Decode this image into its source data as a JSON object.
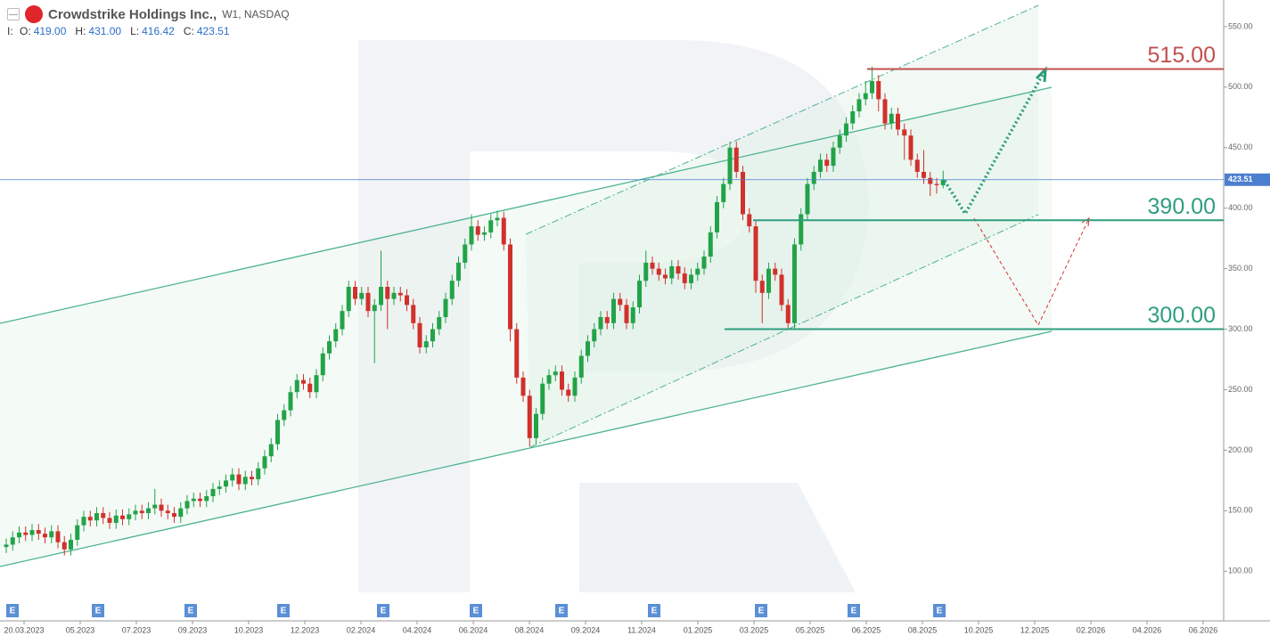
{
  "chart_data": {
    "type": "candlestick",
    "title": "Crowdstrike Holdings Inc.,",
    "subtitle": "W1, NASDAQ",
    "header": {
      "prefix": "I:",
      "fields": [
        {
          "label": "O:",
          "value": "419.00"
        },
        {
          "label": "H:",
          "value": "431.00"
        },
        {
          "label": "L:",
          "value": "416.42"
        },
        {
          "label": "C:",
          "value": "423.51"
        }
      ]
    },
    "up_color": "#22a348",
    "down_color": "#d0312d",
    "open": [
      120,
      122,
      128,
      132,
      130,
      134,
      131,
      128,
      133,
      124,
      118,
      126,
      138,
      145,
      142,
      148,
      144,
      140,
      146,
      143,
      147,
      150,
      148,
      152,
      155,
      150,
      148,
      145,
      152,
      158,
      160,
      158,
      162,
      168,
      170,
      175,
      180,
      172,
      178,
      176,
      185,
      195,
      205,
      225,
      233,
      248,
      258,
      255,
      248,
      262,
      280,
      290,
      300,
      315,
      335,
      325,
      330,
      315,
      320,
      335,
      325,
      330,
      328,
      320,
      305,
      285,
      290,
      300,
      310,
      325,
      340,
      355,
      370,
      385,
      378,
      380,
      390,
      392,
      370,
      300,
      260,
      245,
      210,
      230,
      255,
      262,
      265,
      250,
      245,
      260,
      278,
      290,
      300,
      310,
      305,
      325,
      320,
      305,
      318,
      340,
      355,
      350,
      345,
      342,
      352,
      346,
      338,
      345,
      350,
      360,
      380,
      405,
      420,
      450,
      430,
      395,
      385,
      340,
      330,
      350,
      345,
      320,
      305,
      370,
      395,
      420,
      430,
      440,
      435,
      450,
      460,
      470,
      480,
      490,
      495,
      505,
      490,
      470,
      478,
      465,
      460,
      440,
      430,
      425,
      420,
      419
    ],
    "high": [
      127,
      133,
      137,
      137,
      139,
      139,
      136,
      138,
      138,
      129,
      131,
      143,
      150,
      150,
      153,
      153,
      149,
      151,
      151,
      152,
      155,
      155,
      157,
      168,
      160,
      155,
      153,
      157,
      163,
      165,
      165,
      167,
      173,
      175,
      180,
      185,
      185,
      183,
      183,
      190,
      200,
      210,
      230,
      238,
      253,
      263,
      263,
      260,
      267,
      285,
      295,
      305,
      320,
      340,
      340,
      335,
      335,
      325,
      365,
      340,
      335,
      335,
      333,
      325,
      310,
      295,
      305,
      315,
      330,
      345,
      360,
      375,
      395,
      390,
      385,
      395,
      398,
      397,
      375,
      305,
      265,
      250,
      235,
      260,
      267,
      270,
      270,
      255,
      265,
      283,
      295,
      305,
      315,
      315,
      330,
      330,
      325,
      323,
      345,
      365,
      360,
      355,
      350,
      357,
      357,
      351,
      350,
      355,
      365,
      385,
      410,
      425,
      455,
      455,
      435,
      400,
      390,
      345,
      355,
      355,
      350,
      325,
      375,
      400,
      425,
      435,
      445,
      445,
      455,
      465,
      475,
      485,
      495,
      505,
      517,
      510,
      495,
      483,
      483,
      470,
      465,
      445,
      448,
      430,
      425,
      431
    ],
    "low": [
      115,
      117,
      123,
      125,
      125,
      126,
      123,
      123,
      119,
      113,
      113,
      121,
      133,
      137,
      137,
      139,
      135,
      135,
      138,
      138,
      142,
      143,
      143,
      147,
      145,
      143,
      140,
      140,
      147,
      153,
      153,
      153,
      157,
      163,
      165,
      170,
      167,
      167,
      171,
      171,
      180,
      190,
      200,
      220,
      228,
      243,
      250,
      243,
      243,
      257,
      275,
      285,
      295,
      310,
      320,
      320,
      310,
      272,
      315,
      300,
      320,
      323,
      315,
      300,
      280,
      280,
      285,
      295,
      305,
      320,
      335,
      350,
      365,
      373,
      373,
      375,
      385,
      365,
      290,
      255,
      240,
      203,
      205,
      225,
      250,
      257,
      245,
      240,
      240,
      255,
      273,
      285,
      295,
      300,
      300,
      315,
      300,
      300,
      313,
      335,
      345,
      340,
      337,
      337,
      341,
      333,
      333,
      340,
      345,
      355,
      375,
      400,
      415,
      425,
      390,
      380,
      330,
      305,
      325,
      340,
      315,
      300,
      300,
      365,
      390,
      415,
      425,
      430,
      430,
      445,
      455,
      465,
      475,
      485,
      490,
      480,
      465,
      465,
      460,
      440,
      435,
      425,
      420,
      410,
      412,
      416.42
    ],
    "close": [
      122,
      128,
      132,
      130,
      134,
      131,
      128,
      133,
      124,
      118,
      126,
      138,
      145,
      142,
      148,
      144,
      140,
      146,
      143,
      147,
      150,
      148,
      152,
      155,
      150,
      148,
      145,
      152,
      158,
      160,
      158,
      162,
      168,
      170,
      175,
      180,
      172,
      178,
      176,
      185,
      195,
      205,
      225,
      233,
      248,
      258,
      255,
      248,
      262,
      280,
      290,
      300,
      315,
      335,
      325,
      330,
      315,
      320,
      335,
      325,
      330,
      328,
      320,
      305,
      285,
      290,
      300,
      310,
      325,
      340,
      355,
      370,
      385,
      378,
      380,
      390,
      392,
      370,
      300,
      260,
      245,
      210,
      230,
      255,
      262,
      265,
      250,
      245,
      260,
      278,
      290,
      300,
      310,
      305,
      325,
      320,
      305,
      318,
      340,
      355,
      350,
      345,
      342,
      352,
      346,
      338,
      345,
      350,
      360,
      380,
      405,
      420,
      450,
      430,
      395,
      385,
      340,
      330,
      350,
      345,
      320,
      305,
      370,
      395,
      420,
      430,
      440,
      435,
      450,
      460,
      470,
      480,
      490,
      495,
      505,
      490,
      470,
      478,
      465,
      460,
      440,
      430,
      425,
      420,
      419,
      423.51
    ],
    "ylim": [
      59,
      572
    ],
    "yticks": [
      {
        "value": 100,
        "label": "100.00"
      },
      {
        "value": 150,
        "label": "150.00"
      },
      {
        "value": 200,
        "label": "200.00"
      },
      {
        "value": 250,
        "label": "250.00"
      },
      {
        "value": 300,
        "label": "300.00"
      },
      {
        "value": 350,
        "label": "350.00"
      },
      {
        "value": 400,
        "label": "400.00"
      },
      {
        "value": 450,
        "label": "450.00"
      },
      {
        "value": 500,
        "label": "500.00"
      },
      {
        "value": 550,
        "label": "550.00"
      }
    ],
    "xticks": [
      "20.03.2023",
      "05.2023",
      "07.2023",
      "09.2023",
      "10.2023",
      "12.2023",
      "02.2024",
      "04.2024",
      "06.2024",
      "08.2024",
      "09.2024",
      "11.2024",
      "01.2025",
      "03.2025",
      "05.2025",
      "06.2025",
      "08.2025",
      "10.2025",
      "12.2025",
      "02.2026",
      "04.2026",
      "06.2026"
    ],
    "current_price": {
      "value": 423.51,
      "label": "423.51",
      "color": "#4a7fd0"
    },
    "levels": [
      {
        "value": 515,
        "label": "515.00",
        "color": "#c0504d"
      },
      {
        "value": 390,
        "label": "390.00",
        "color": "#2e9e7e"
      },
      {
        "value": 300,
        "label": "300.00",
        "color": "#2e9e7e"
      }
    ],
    "event_markers": [
      "E",
      "E",
      "E",
      "E",
      "E",
      "E",
      "E",
      "E",
      "E",
      "E",
      "E"
    ]
  }
}
